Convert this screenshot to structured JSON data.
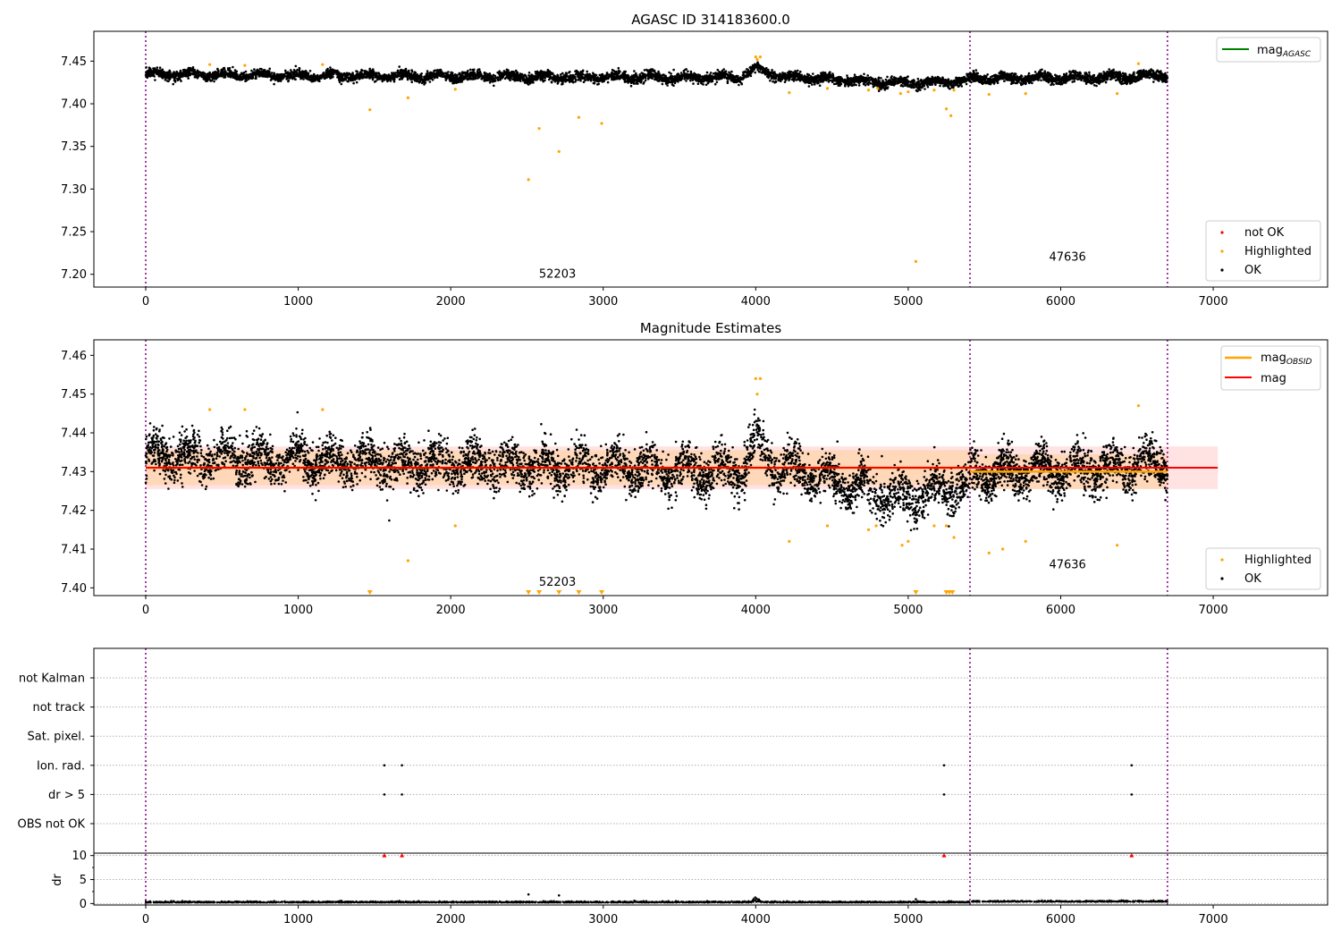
{
  "colors": {
    "ok": "#000000",
    "highlighted": "#ffa500",
    "not_ok": "#ff0000",
    "mag_agasc": "#008000",
    "mag_obsid": "#ffa500",
    "mag": "#ff0000",
    "band": "#ffb6b6",
    "obsid_boundary": "#800080",
    "grid": "#b0b0b0"
  },
  "chart_data": [
    {
      "type": "scatter",
      "title": "AGASC ID 314183600.0",
      "xlim": [
        -340,
        7750
      ],
      "ylim": [
        7.185,
        7.485
      ],
      "x_ticks": [
        0,
        1000,
        2000,
        3000,
        4000,
        5000,
        6000,
        7000
      ],
      "y_ticks": [
        7.2,
        7.25,
        7.3,
        7.35,
        7.4,
        7.45
      ],
      "obsid_boundaries": [
        0,
        5405,
        6700
      ],
      "obsid_labels": [
        {
          "text": "52203",
          "x": 2700,
          "y": 7.196
        },
        {
          "text": "47636",
          "x": 6045,
          "y": 7.216
        }
      ],
      "legends": [
        {
          "position": "top-right",
          "entries": [
            {
              "label": "mag",
              "sub": "AGASC",
              "kind": "line",
              "color": "#008000"
            }
          ]
        },
        {
          "position": "lower-right",
          "entries": [
            {
              "label": "not OK",
              "kind": "dot",
              "color": "#ff0000"
            },
            {
              "label": "Highlighted",
              "kind": "dot",
              "color": "#ffa500"
            },
            {
              "label": "OK",
              "kind": "dot",
              "color": "#000000"
            }
          ]
        }
      ],
      "ok_series": [
        {
          "x_range": [
            0,
            5405
          ],
          "trend": [
            [
              0,
              7.435
            ],
            [
              1000,
              7.433
            ],
            [
              2000,
              7.432
            ],
            [
              3000,
              7.431
            ],
            [
              3900,
              7.431
            ],
            [
              4000,
              7.441
            ],
            [
              4150,
              7.432
            ],
            [
              5000,
              7.424
            ],
            [
              5405,
              7.427
            ]
          ],
          "spread": 0.005,
          "n": 5000
        },
        {
          "x_range": [
            5405,
            6700
          ],
          "trend": [
            [
              5405,
              7.43
            ],
            [
              6000,
              7.43
            ],
            [
              6700,
              7.433
            ]
          ],
          "spread": 0.005,
          "n": 1400
        }
      ],
      "highlighted_points": [
        [
          1470,
          7.393
        ],
        [
          1720,
          7.407
        ],
        [
          2030,
          7.417
        ],
        [
          2510,
          7.311
        ],
        [
          2580,
          7.371
        ],
        [
          2710,
          7.344
        ],
        [
          2840,
          7.384
        ],
        [
          2990,
          7.377
        ],
        [
          4000,
          7.455
        ],
        [
          4010,
          7.452
        ],
        [
          4030,
          7.455
        ],
        [
          4220,
          7.413
        ],
        [
          4470,
          7.418
        ],
        [
          4740,
          7.416
        ],
        [
          4800,
          7.418
        ],
        [
          4950,
          7.412
        ],
        [
          5000,
          7.414
        ],
        [
          5050,
          7.215
        ],
        [
          5170,
          7.416
        ],
        [
          5250,
          7.394
        ],
        [
          5280,
          7.386
        ],
        [
          5300,
          7.416
        ],
        [
          5530,
          7.411
        ],
        [
          5770,
          7.412
        ],
        [
          6370,
          7.412
        ],
        [
          6510,
          7.447
        ],
        [
          420,
          7.446
        ],
        [
          650,
          7.445
        ],
        [
          1160,
          7.446
        ]
      ],
      "not_ok_points": []
    },
    {
      "type": "scatter",
      "title": "Magnitude Estimates",
      "xlim": [
        -340,
        7750
      ],
      "ylim": [
        7.398,
        7.464
      ],
      "x_ticks": [
        0,
        1000,
        2000,
        3000,
        4000,
        5000,
        6000,
        7000
      ],
      "y_ticks": [
        7.4,
        7.41,
        7.42,
        7.43,
        7.44,
        7.45,
        7.46
      ],
      "obsid_boundaries": [
        0,
        5405,
        6700
      ],
      "obsid_labels": [
        {
          "text": "52203",
          "x": 2700,
          "y": 7.4005
        },
        {
          "text": "47636",
          "x": 6045,
          "y": 7.405
        }
      ],
      "mag": 7.431,
      "mag_band": [
        7.4255,
        7.4365
      ],
      "mag_band_x": [
        0,
        7030
      ],
      "mag_obsid_segments": [
        {
          "x": [
            0,
            5405
          ],
          "value": 7.431
        },
        {
          "x": [
            5405,
            6700
          ],
          "value": 7.43
        }
      ],
      "legends": [
        {
          "position": "top-right",
          "entries": [
            {
              "label": "mag",
              "sub": "OBSID",
              "kind": "line",
              "color": "#ffa500"
            },
            {
              "label": "mag",
              "kind": "line",
              "color": "#ff0000"
            }
          ]
        },
        {
          "position": "lower-right",
          "entries": [
            {
              "label": "Highlighted",
              "kind": "dot",
              "color": "#ffa500"
            },
            {
              "label": "OK",
              "kind": "dot",
              "color": "#000000"
            }
          ]
        }
      ],
      "ok_series": [
        {
          "x_range": [
            0,
            5405
          ],
          "trend": [
            [
              0,
              7.434
            ],
            [
              1000,
              7.433
            ],
            [
              2000,
              7.432
            ],
            [
              3000,
              7.431
            ],
            [
              3900,
              7.43
            ],
            [
              4000,
              7.438
            ],
            [
              4150,
              7.431
            ],
            [
              4900,
              7.424
            ],
            [
              5000,
              7.423
            ],
            [
              5405,
              7.427
            ]
          ],
          "spread": 0.005,
          "n": 5000
        },
        {
          "x_range": [
            5405,
            6700
          ],
          "trend": [
            [
              5405,
              7.43
            ],
            [
              6000,
              7.43
            ],
            [
              6700,
              7.432
            ]
          ],
          "spread": 0.005,
          "n": 1400
        }
      ],
      "highlighted_points": [
        [
          420,
          7.446
        ],
        [
          650,
          7.446
        ],
        [
          1160,
          7.446
        ],
        [
          1720,
          7.407
        ],
        [
          2030,
          7.416
        ],
        [
          4000,
          7.454
        ],
        [
          4010,
          7.45
        ],
        [
          4030,
          7.454
        ],
        [
          4220,
          7.412
        ],
        [
          4470,
          7.416
        ],
        [
          4740,
          7.415
        ],
        [
          4790,
          7.416
        ],
        [
          4960,
          7.411
        ],
        [
          5000,
          7.412
        ],
        [
          5170,
          7.416
        ],
        [
          5250,
          7.416
        ],
        [
          5300,
          7.413
        ],
        [
          5530,
          7.409
        ],
        [
          5620,
          7.41
        ],
        [
          5770,
          7.412
        ],
        [
          6370,
          7.411
        ],
        [
          6510,
          7.447
        ]
      ],
      "highlighted_below_range_x": [
        1470,
        2510,
        2580,
        2710,
        2840,
        2990,
        5050,
        5250,
        5270,
        5290
      ]
    },
    {
      "type": "scatter",
      "title": "",
      "xlim": [
        -340,
        7750
      ],
      "x_ticks": [
        0,
        1000,
        2000,
        3000,
        4000,
        5000,
        6000,
        7000
      ],
      "obsid_boundaries": [
        0,
        5405,
        6700
      ],
      "flag_rows": [
        "not Kalman",
        "not track",
        "Sat. pixel.",
        "Ion. rad.",
        "dr > 5",
        "OBS not OK"
      ],
      "flag_points": [
        {
          "flag": "Ion. rad.",
          "x": [
            1565,
            1680,
            5235,
            6465
          ]
        },
        {
          "flag": "dr > 5",
          "x": [
            1565,
            1680,
            5235,
            6465
          ]
        }
      ],
      "dr": {
        "ylabel": "dr",
        "ylim": [
          -0.3,
          10.5
        ],
        "y_ticks": [
          0,
          5,
          10
        ],
        "clipped_at": 10,
        "clipped_points_x": [
          1565,
          1680,
          5235,
          6465
        ],
        "baseline": 0.2,
        "bump": {
          "x": 4000,
          "value": 1.3
        },
        "outliers": [
          [
            2510,
            1.9
          ],
          [
            2710,
            1.7
          ],
          [
            5050,
            0.9
          ]
        ]
      }
    }
  ]
}
